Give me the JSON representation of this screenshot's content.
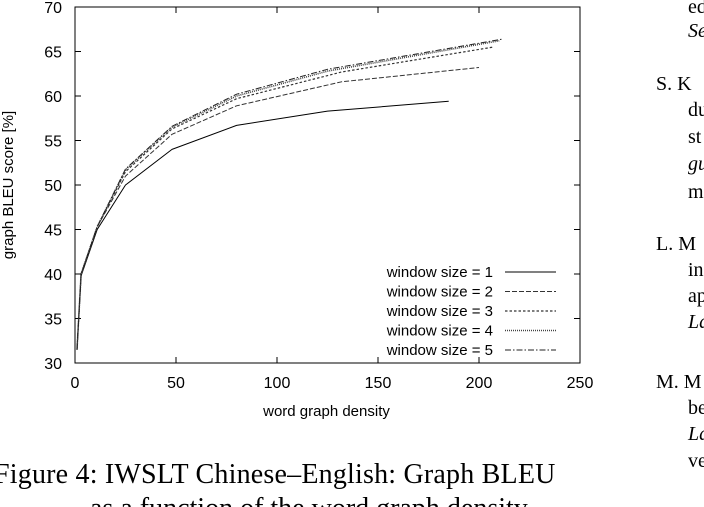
{
  "chart_data": {
    "type": "line",
    "title": "",
    "xlabel": "word graph density",
    "ylabel": "graph BLEU score [%]",
    "xlim": [
      0,
      250
    ],
    "ylim": [
      30,
      70
    ],
    "xticks": [
      0,
      50,
      100,
      150,
      200,
      250
    ],
    "yticks": [
      30,
      35,
      40,
      45,
      50,
      55,
      60,
      65,
      70
    ],
    "grid": false,
    "legend_position": "bottom-right",
    "series": [
      {
        "name": "window size = 1",
        "x": [
          1,
          3,
          11,
          25,
          48,
          80,
          125,
          185
        ],
        "y": [
          31.5,
          39.8,
          45.0,
          50.0,
          54.0,
          56.7,
          58.3,
          59.4
        ]
      },
      {
        "name": "window size = 2",
        "x": [
          1,
          3,
          11,
          25,
          48,
          80,
          132,
          200
        ],
        "y": [
          31.5,
          40.0,
          45.3,
          51.0,
          55.7,
          58.9,
          61.6,
          63.2
        ]
      },
      {
        "name": "window size = 3",
        "x": [
          1,
          3,
          11,
          25,
          48,
          80,
          132,
          207
        ],
        "y": [
          31.5,
          40.0,
          45.3,
          51.5,
          56.3,
          59.7,
          62.7,
          65.5
        ]
      },
      {
        "name": "window size = 4",
        "x": [
          1,
          3,
          11,
          25,
          48,
          80,
          125,
          210
        ],
        "y": [
          31.5,
          40.0,
          45.3,
          51.7,
          56.5,
          60.0,
          62.8,
          66.2
        ]
      },
      {
        "name": "window size = 5",
        "x": [
          1,
          3,
          11,
          25,
          48,
          80,
          125,
          212
        ],
        "y": [
          31.5,
          40.0,
          45.3,
          51.8,
          56.6,
          60.2,
          63.0,
          66.4
        ]
      }
    ]
  },
  "caption": {
    "line1": "Figure 4:  IWSLT Chinese–English:  Graph BLEU",
    "line2": "as a function of the word graph density."
  },
  "references": [
    {
      "text": "ed",
      "italic": false
    },
    {
      "text": "Se",
      "italic": true
    },
    {
      "text": "S. K",
      "italic": false
    },
    {
      "text": "du",
      "italic": false
    },
    {
      "text": "st",
      "italic": false
    },
    {
      "text": "gu",
      "italic": true
    },
    {
      "text": "m",
      "italic": false
    },
    {
      "text": "L. M",
      "italic": false
    },
    {
      "text": "in",
      "italic": false
    },
    {
      "text": "ap",
      "italic": false
    },
    {
      "text": "La",
      "italic": true
    },
    {
      "text": "M. M",
      "italic": false
    },
    {
      "text": "be",
      "italic": false
    },
    {
      "text": "La",
      "italic": true
    },
    {
      "text": "ve",
      "italic": false
    }
  ]
}
